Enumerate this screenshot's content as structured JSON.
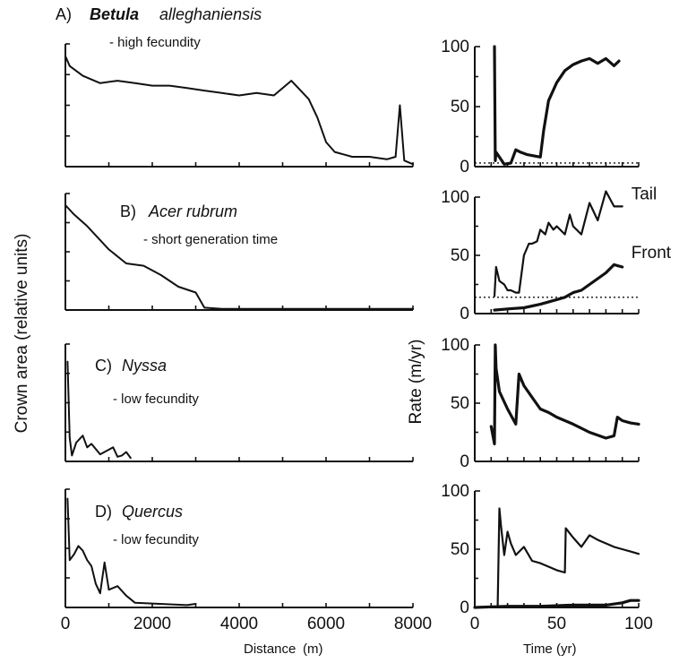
{
  "figure": {
    "left_ylabel": "Crown area (relative units)",
    "right_ylabel": "Rate (m/yr)",
    "left_xlabel_word": "Distance",
    "left_xlabel_unit": "(m)",
    "right_xlabel_word": "Time",
    "right_xlabel_unit": "(yr)"
  },
  "panels": [
    {
      "letter": "A)",
      "genus": "Betula",
      "species": "alleghaniensis",
      "note": "- high fecundity"
    },
    {
      "letter": "B)",
      "genus": "Acer rubrum",
      "species": "",
      "note": "- short generation time"
    },
    {
      "letter": "C)",
      "genus": "Nyssa",
      "species": "",
      "note": "- low fecundity"
    },
    {
      "letter": "D)",
      "genus": "Quercus",
      "species": "",
      "note": "- low fecundity"
    }
  ],
  "chart_data": [
    {
      "type": "line",
      "title": "A) Betula alleghaniensis - high fecundity",
      "xlabel": "Distance (m)",
      "ylabel": "Crown area (relative units)",
      "xlim": [
        0,
        8000
      ],
      "ylim": [
        0,
        100
      ],
      "series": [
        {
          "x": [
            0,
            100,
            400,
            800,
            1200,
            1600,
            2000,
            2400,
            2800,
            3200,
            3600,
            4000,
            4400,
            4800,
            5200,
            5600,
            5800,
            6000,
            6200,
            6600,
            7000,
            7400,
            7600,
            7700,
            7800,
            8000
          ],
          "y": [
            90,
            82,
            74,
            68,
            70,
            68,
            66,
            66,
            64,
            62,
            60,
            58,
            60,
            58,
            70,
            55,
            40,
            20,
            12,
            8,
            8,
            6,
            8,
            50,
            5,
            2
          ]
        }
      ]
    },
    {
      "type": "line",
      "title": "B) Acer rubrum - short generation time",
      "xlabel": "Distance (m)",
      "ylabel": "Crown area (relative units)",
      "xlim": [
        0,
        8000
      ],
      "ylim": [
        0,
        100
      ],
      "series": [
        {
          "x": [
            0,
            200,
            500,
            1000,
            1400,
            1800,
            2200,
            2600,
            3000,
            3200,
            3600,
            4000,
            5000,
            6000,
            7000,
            8000
          ],
          "y": [
            90,
            82,
            72,
            52,
            40,
            38,
            30,
            20,
            15,
            2,
            1,
            1,
            1,
            1,
            1,
            1
          ]
        }
      ]
    },
    {
      "type": "line",
      "title": "C) Nyssa - low fecundity",
      "xlabel": "Distance (m)",
      "ylabel": "Crown area (relative units)",
      "xlim": [
        0,
        8000
      ],
      "ylim": [
        0,
        100
      ],
      "series": [
        {
          "x": [
            50,
            100,
            150,
            250,
            400,
            500,
            600,
            800,
            1000,
            1100,
            1200,
            1300,
            1400,
            1500
          ],
          "y": [
            85,
            20,
            5,
            16,
            22,
            12,
            15,
            6,
            10,
            12,
            4,
            5,
            8,
            3
          ]
        }
      ]
    },
    {
      "type": "line",
      "title": "D) Quercus - low fecundity",
      "xlabel": "Distance (m)",
      "ylabel": "Crown area (relative units)",
      "xlim": [
        0,
        8000
      ],
      "ylim": [
        0,
        100
      ],
      "series": [
        {
          "x": [
            50,
            100,
            200,
            300,
            400,
            500,
            600,
            700,
            800,
            900,
            1000,
            1200,
            1400,
            1600,
            2800,
            3000
          ],
          "y": [
            92,
            40,
            45,
            52,
            48,
            40,
            35,
            20,
            12,
            38,
            15,
            18,
            10,
            4,
            2,
            3
          ]
        }
      ]
    },
    {
      "type": "line",
      "xlabel": "Time (yr)",
      "ylabel": "Rate (m/yr)",
      "xlim": [
        0,
        100
      ],
      "ylim": [
        0,
        100
      ],
      "reference_y": 3,
      "series": [
        {
          "x": [
            12,
            12.5,
            13,
            15,
            18,
            22,
            25,
            28,
            32,
            40,
            42,
            45,
            50,
            55,
            60,
            65,
            70,
            75,
            80,
            85,
            88
          ],
          "y": [
            100,
            5,
            12,
            8,
            2,
            3,
            14,
            12,
            10,
            8,
            30,
            55,
            70,
            80,
            85,
            88,
            90,
            86,
            90,
            84,
            88
          ]
        }
      ]
    },
    {
      "type": "line",
      "xlabel": "Time (yr)",
      "ylabel": "Rate (m/yr)",
      "xlim": [
        0,
        100
      ],
      "ylim": [
        0,
        100
      ],
      "reference_y": 14,
      "series": [
        {
          "name": "Tail",
          "x": [
            12,
            13,
            15,
            18,
            20,
            22,
            25,
            27,
            30,
            33,
            35,
            38,
            40,
            43,
            45,
            48,
            50,
            55,
            58,
            60,
            65,
            70,
            75,
            80,
            85,
            90
          ],
          "y": [
            15,
            40,
            28,
            25,
            20,
            20,
            18,
            18,
            50,
            60,
            60,
            62,
            72,
            68,
            78,
            72,
            75,
            68,
            85,
            75,
            68,
            95,
            80,
            105,
            92,
            92
          ]
        },
        {
          "name": "Front",
          "x": [
            12,
            20,
            30,
            40,
            50,
            55,
            60,
            65,
            70,
            75,
            80,
            85,
            90
          ],
          "y": [
            3,
            4,
            5,
            8,
            12,
            14,
            18,
            20,
            25,
            30,
            35,
            42,
            40
          ]
        }
      ]
    },
    {
      "type": "line",
      "xlabel": "Time (yr)",
      "ylabel": "Rate (m/yr)",
      "xlim": [
        0,
        100
      ],
      "ylim": [
        0,
        100
      ],
      "series": [
        {
          "x": [
            10,
            12,
            12.5,
            13,
            15,
            20,
            25,
            27,
            30,
            35,
            40,
            45,
            50,
            60,
            70,
            80,
            85,
            87,
            90,
            95,
            100
          ],
          "y": [
            30,
            15,
            100,
            80,
            60,
            45,
            32,
            75,
            65,
            55,
            45,
            42,
            38,
            32,
            25,
            20,
            22,
            38,
            35,
            33,
            32
          ]
        }
      ]
    },
    {
      "type": "line",
      "xlabel": "Time (yr)",
      "ylabel": "Rate (m/yr)",
      "xlim": [
        0,
        100
      ],
      "ylim": [
        0,
        100
      ],
      "series": [
        {
          "x": [
            14,
            15,
            16,
            18,
            20,
            22,
            25,
            30,
            35,
            40,
            45,
            50,
            55,
            55.5,
            60,
            65,
            70,
            75,
            80,
            85,
            90,
            95,
            100
          ],
          "y": [
            2,
            85,
            70,
            45,
            65,
            55,
            45,
            52,
            40,
            38,
            35,
            32,
            30,
            68,
            60,
            52,
            62,
            58,
            55,
            52,
            50,
            48,
            46
          ]
        },
        {
          "x": [
            0,
            20,
            40,
            60,
            80,
            90,
            95,
            100
          ],
          "y": [
            0,
            1,
            1,
            2,
            2,
            4,
            6,
            6
          ]
        }
      ]
    }
  ]
}
